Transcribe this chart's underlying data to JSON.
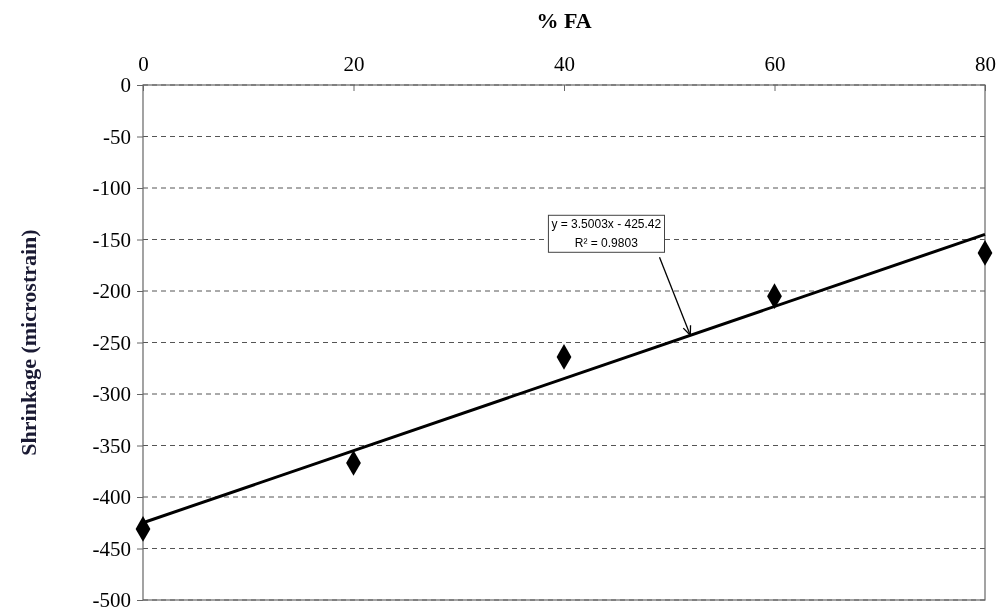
{
  "chart_data": {
    "type": "scatter",
    "xlabel": "% FA",
    "ylabel": "Shrinkage (microstrain)",
    "xlim": [
      0,
      80
    ],
    "xticks": [
      0,
      20,
      40,
      60,
      80
    ],
    "ylim": [
      -500,
      0
    ],
    "yticks": [
      0,
      -50,
      -100,
      -150,
      -200,
      -250,
      -300,
      -350,
      -400,
      -450,
      -500
    ],
    "grid": "y",
    "series": [
      {
        "color": "#000000",
        "marker": "diamond",
        "x": [
          0,
          20,
          40,
          60,
          80
        ],
        "values": [
          -431,
          -367,
          -264,
          -205,
          -163
        ]
      },
      {
        "type": "line",
        "color": "#000000",
        "line_style": "solid",
        "marker": "none",
        "x": [
          0,
          80
        ],
        "values": [
          -425,
          -145
        ]
      }
    ],
    "annotations": [
      {
        "text": "y = 3.5003x - 425.42\nR² = 0.9803",
        "x": 52,
        "y": -243
      }
    ]
  }
}
